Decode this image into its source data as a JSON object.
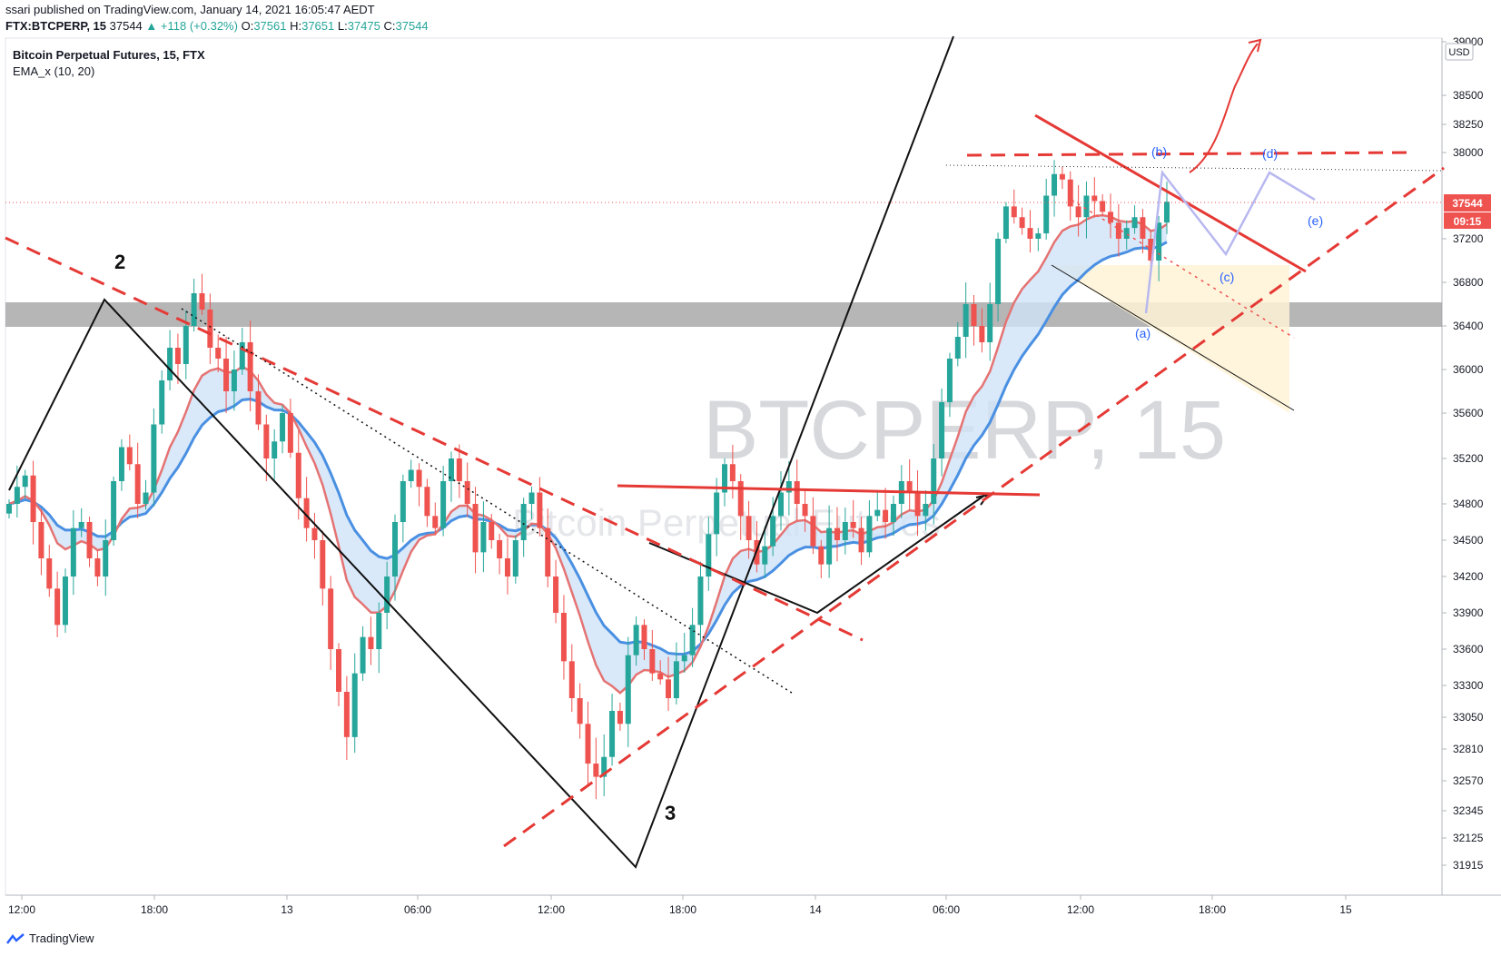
{
  "header": {
    "publish_line": "ssari published on TradingView.com, January 14, 2021 16:05:47 AEDT",
    "symbol": "FTX:BTCPERP, 15",
    "last": "37544",
    "change": "▲ +118 (+0.32%)",
    "o_label": "O:",
    "o": "37561",
    "h_label": "H:",
    "h": "37651",
    "l_label": "L:",
    "l": "37475",
    "c_label": "C:",
    "c": "37544"
  },
  "legend": {
    "title": "Bitcoin Perpetual Futures, 15, FTX",
    "indicator": "EMA_x (10, 20)"
  },
  "watermark": {
    "symbol": "BTCPERP, 15",
    "name": "Bitcoin Perpetual Futures"
  },
  "footer": {
    "brand": "TradingView",
    "logo_icon": "tradingview-logo-icon"
  },
  "colors": {
    "up": "#26a69a",
    "down": "#ef5350",
    "ema_fast": "#e57373",
    "ema_slow": "#4a90e2",
    "fill": "#cfe3f7",
    "zone": "#9e9e9e",
    "dash_red": "#e53935",
    "price_tag": "#ef5350"
  },
  "chart_data": {
    "type": "candlestick",
    "title": "Bitcoin Perpetual Futures, 15, FTX",
    "symbol": "FTX:BTCPERP",
    "interval": "15",
    "currency": "USD",
    "y_ticks": [
      39000,
      38500,
      38250,
      38000,
      37544,
      37200,
      36800,
      36400,
      36000,
      35600,
      35200,
      34800,
      34500,
      34200,
      33900,
      33600,
      33300,
      33050,
      32810,
      32570,
      32345,
      32125,
      31915
    ],
    "y_tick_labels": [
      "39000",
      "38500",
      "38250",
      "38000",
      "37544",
      "37200",
      "36800",
      "36400",
      "36000",
      "35600",
      "35200",
      "34800",
      "34500",
      "34200",
      "33900",
      "33600",
      "33300",
      "33050",
      "32810",
      "32570",
      "32345",
      "32125",
      "31915"
    ],
    "x_tick_labels": [
      "12:00",
      "18:00",
      "13",
      "06:00",
      "12:00",
      "18:00",
      "14",
      "06:00",
      "12:00",
      "18:00",
      "15"
    ],
    "last_price": "37544",
    "countdown": "09:15",
    "annotations": [
      "2",
      "3",
      "(a)",
      "(b)",
      "(c)",
      "(d)",
      "(e)"
    ],
    "series": [
      {
        "name": "EMA_x (10, 20)",
        "type": "ema_pair"
      }
    ],
    "price_path": [
      34800,
      34950,
      35050,
      34650,
      34350,
      34100,
      33800,
      34200,
      34600,
      34650,
      34350,
      34200,
      34500,
      35000,
      35300,
      35150,
      34800,
      34900,
      35500,
      35900,
      36200,
      36050,
      36400,
      36700,
      36550,
      36200,
      36100,
      35800,
      36000,
      36250,
      35800,
      35500,
      35200,
      35350,
      35600,
      35250,
      34850,
      34600,
      34500,
      34100,
      33600,
      33250,
      32900,
      33400,
      33700,
      33600,
      33900,
      34200,
      34650,
      35000,
      35100,
      34950,
      34700,
      34600,
      35000,
      35200,
      35000,
      34800,
      34400,
      34650,
      34500,
      34350,
      34200,
      34500,
      34800,
      34900,
      34600,
      34200,
      33900,
      33500,
      33200,
      33000,
      32700,
      32600,
      32750,
      33100,
      33000,
      33550,
      33800,
      33600,
      33400,
      33350,
      33200,
      33500,
      33550,
      33800,
      34200,
      34550,
      34900,
      35150,
      35000,
      34700,
      34500,
      34300,
      34450,
      34700,
      34900,
      35000,
      34800,
      34700,
      34450,
      34300,
      34600,
      34500,
      34650,
      34600,
      34400,
      34700,
      34750,
      34650,
      34800,
      35000,
      34900,
      34700,
      34800,
      35200,
      35700,
      36100,
      36300,
      36600,
      36400,
      36250,
      36600,
      37200,
      37500,
      37400,
      37300,
      37200,
      37250,
      37600,
      37800,
      37750,
      37500,
      37400,
      37600,
      37550,
      37450,
      37350,
      37200,
      37300,
      37400,
      37200,
      37000,
      37350,
      37544
    ]
  }
}
